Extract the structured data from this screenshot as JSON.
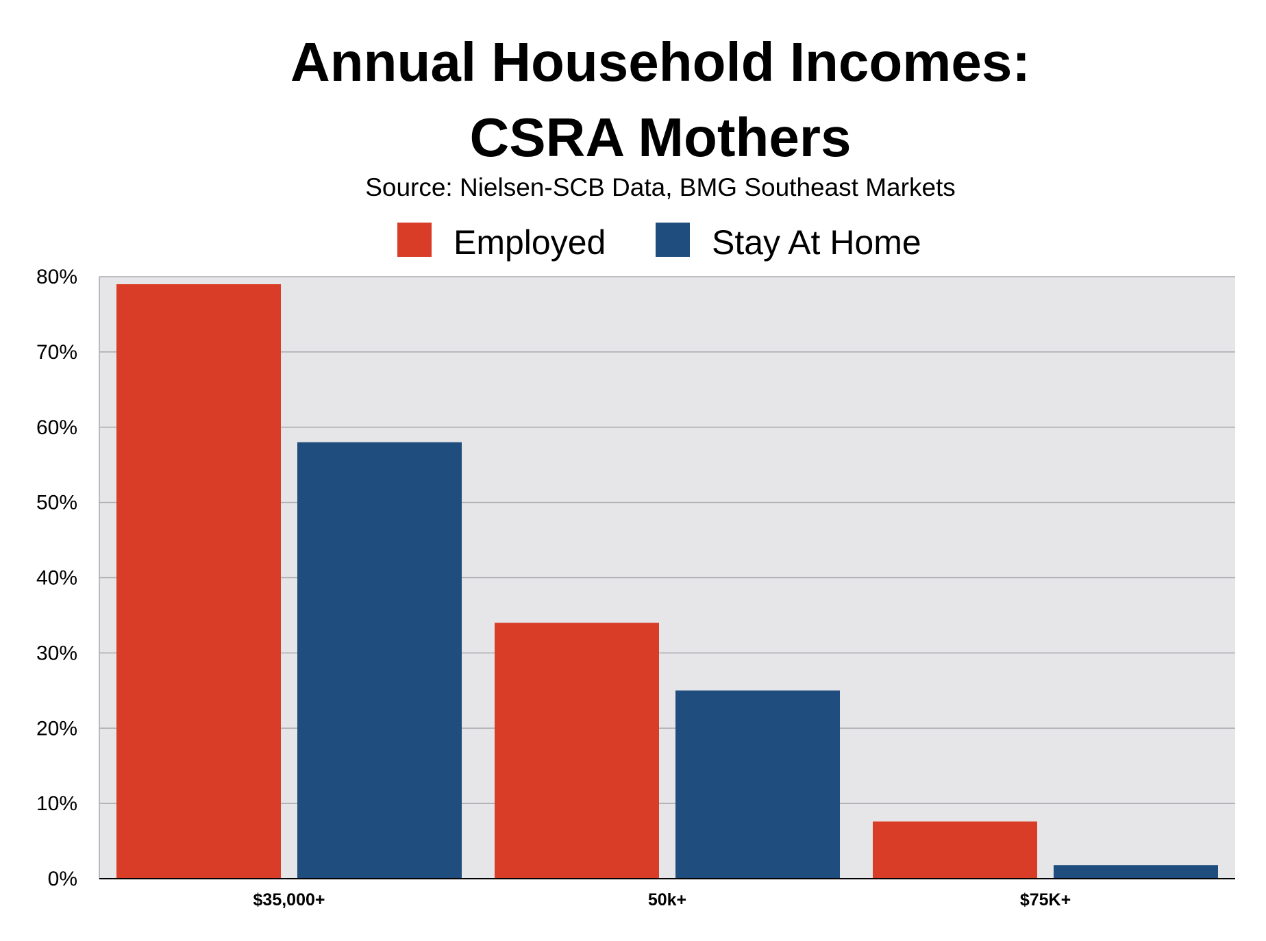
{
  "chart_data": {
    "type": "bar",
    "title_lines": [
      "Annual Household Incomes:",
      "CSRA Mothers"
    ],
    "subtitle": "Source: Nielsen-SCB Data, BMG Southeast Markets",
    "categories": [
      "$35,000+",
      "50k+",
      "$75K+"
    ],
    "series": [
      {
        "name": "Employed",
        "color": "#d93c27",
        "values": [
          79,
          34,
          7.6
        ]
      },
      {
        "name": "Stay At Home",
        "color": "#1f4d7e",
        "values": [
          58,
          25,
          1.8
        ]
      }
    ],
    "ylim": [
      0,
      80
    ],
    "yticks": [
      {
        "value": 0,
        "label": "0%"
      },
      {
        "value": 10,
        "label": "10%"
      },
      {
        "value": 20,
        "label": "20%"
      },
      {
        "value": 30,
        "label": "30%"
      },
      {
        "value": 40,
        "label": "40%"
      },
      {
        "value": 50,
        "label": "50%"
      },
      {
        "value": 60,
        "label": "60%"
      },
      {
        "value": 70,
        "label": "70%"
      },
      {
        "value": 80,
        "label": "80%"
      }
    ],
    "grid": true,
    "legend_position": "top-center",
    "plot_background": "#e6e6e9",
    "grid_color": "#a9a9ad"
  }
}
